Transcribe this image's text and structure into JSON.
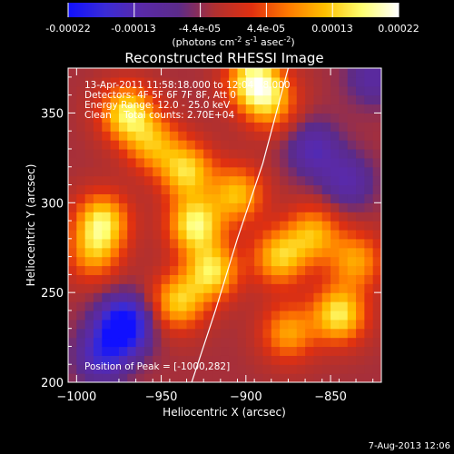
{
  "colorbar": {
    "ticks": [
      "-0.00022",
      "-0.00013",
      "-4.4e-05",
      "4.4e-05",
      "0.00013",
      "0.00022"
    ],
    "unit_label": "(photons cm",
    "unit_exp1": "-2",
    "unit_mid": " s",
    "unit_exp2": "-1",
    "unit_mid2": " asec",
    "unit_exp3": "-2",
    "unit_end": ")",
    "colors": [
      "#1010ff",
      "#3a2bd6",
      "#5a2aa8",
      "#5b2b8a",
      "#b03030",
      "#e03010",
      "#ff7a00",
      "#ffc000",
      "#ffff70",
      "#ffffff"
    ]
  },
  "chart_data": {
    "type": "heatmap",
    "title": "Reconstructed RHESSI Image",
    "xlabel": "Heliocentric X (arcsec)",
    "ylabel": "Heliocentric Y (arcsec)",
    "xlim": [
      -1005,
      -820
    ],
    "ylim": [
      200,
      375
    ],
    "x_ticks": [
      -1000,
      -950,
      -900,
      -850
    ],
    "x_tick_labels": [
      "−1000",
      "−950",
      "−900",
      "−850"
    ],
    "y_ticks": [
      200,
      250,
      300,
      350
    ],
    "y_tick_labels": [
      "200",
      "250",
      "300",
      "350"
    ],
    "clim": [
      -0.00022,
      0.00022
    ],
    "blobs": [
      {
        "x": -985,
        "y": 290,
        "v": 0.00018
      },
      {
        "x": -990,
        "y": 272,
        "v": 0.00012
      },
      {
        "x": -970,
        "y": 350,
        "v": 0.00019
      },
      {
        "x": -955,
        "y": 333,
        "v": 0.00013
      },
      {
        "x": -935,
        "y": 318,
        "v": 0.00017
      },
      {
        "x": -930,
        "y": 288,
        "v": 0.0002
      },
      {
        "x": -920,
        "y": 262,
        "v": 0.00018
      },
      {
        "x": -940,
        "y": 245,
        "v": 0.00016
      },
      {
        "x": -905,
        "y": 305,
        "v": 0.00015
      },
      {
        "x": -895,
        "y": 368,
        "v": 0.00021
      },
      {
        "x": -885,
        "y": 355,
        "v": 0.00012
      },
      {
        "x": -880,
        "y": 270,
        "v": 0.00016
      },
      {
        "x": -860,
        "y": 283,
        "v": 0.00014
      },
      {
        "x": -835,
        "y": 268,
        "v": 0.00013
      },
      {
        "x": -845,
        "y": 238,
        "v": 0.00019
      },
      {
        "x": -875,
        "y": 228,
        "v": 0.00013
      },
      {
        "x": -972,
        "y": 232,
        "v": -0.00022
      },
      {
        "x": -985,
        "y": 215,
        "v": -0.00012
      },
      {
        "x": -860,
        "y": 330,
        "v": -0.0001
      },
      {
        "x": -840,
        "y": 312,
        "v": -9e-05
      },
      {
        "x": -825,
        "y": 370,
        "v": -8e-05
      }
    ],
    "limb_line": [
      [
        -932,
        200
      ],
      [
        -918,
        240
      ],
      [
        -905,
        280
      ],
      [
        -890,
        322
      ],
      [
        -875,
        375
      ]
    ],
    "peak": {
      "x": -1000,
      "y": 282
    },
    "annotations": [
      "13-Apr-2011 11:58:18.000 to 12:04:18.000",
      "Detectors: 4F 5F 6F 7F 8F, Att 0",
      "Energy Range: 12.0 - 25.0 keV",
      "Clean    Total counts: 2.70E+04",
      "Position of Peak = [-1000,282]"
    ]
  },
  "footer": {
    "date": "7-Aug-2013 12:06"
  }
}
